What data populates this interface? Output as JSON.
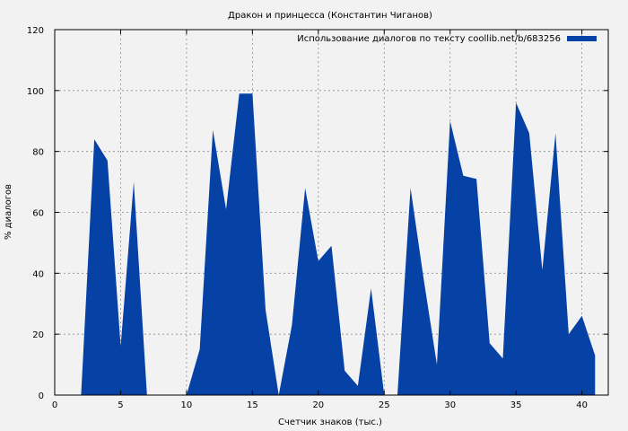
{
  "chart_data": {
    "type": "area",
    "title": "Дракон и принцесса (Константин Чиганов)",
    "xlabel": "Счетчик знаков (тыс.)",
    "ylabel": "% диалогов",
    "xlim": [
      0,
      42
    ],
    "ylim": [
      0,
      120
    ],
    "xticks": [
      0,
      5,
      10,
      15,
      20,
      25,
      30,
      35,
      40
    ],
    "yticks": [
      0,
      20,
      40,
      60,
      80,
      100,
      120
    ],
    "grid": true,
    "legend_position": "top-right",
    "series": [
      {
        "name": "Использование диалогов по тексту coollib.net/b/683256",
        "color": "#0641a6",
        "x": [
          2,
          3,
          4,
          5,
          6,
          7,
          8,
          9,
          10,
          11,
          12,
          13,
          14,
          15,
          16,
          17,
          18,
          19,
          20,
          21,
          22,
          23,
          24,
          25,
          26,
          27,
          28,
          29,
          30,
          31,
          32,
          33,
          34,
          35,
          36,
          37,
          38,
          39,
          40,
          41
        ],
        "y": [
          0,
          84,
          77,
          16,
          70,
          0,
          0,
          0,
          0,
          15,
          87,
          61,
          99,
          99,
          28,
          0,
          23,
          68,
          44,
          49,
          8,
          3,
          35,
          0,
          0,
          68,
          38,
          10,
          90,
          72,
          71,
          17,
          12,
          96,
          86,
          41,
          86,
          20,
          26,
          13
        ]
      }
    ]
  }
}
